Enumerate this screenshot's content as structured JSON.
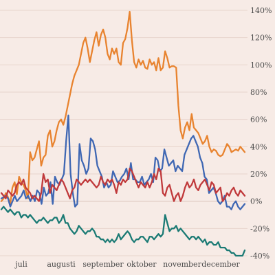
{
  "chart_data": {
    "type": "line",
    "title": "",
    "xlabel": "",
    "ylabel": "",
    "x_tick_labels": [
      "juli",
      "augusti",
      "september",
      "oktober",
      "november",
      "december"
    ],
    "y_ticks": [
      {
        "value": 140,
        "label": "140%"
      },
      {
        "value": 120,
        "label": "120%"
      },
      {
        "value": 100,
        "label": "100%"
      },
      {
        "value": 80,
        "label": "80%"
      },
      {
        "value": 60,
        "label": "60%"
      },
      {
        "value": 40,
        "label": "40%"
      },
      {
        "value": 20,
        "label": "20%"
      },
      {
        "value": 0,
        "label": "0%"
      },
      {
        "value": -20,
        "label": "-20%"
      },
      {
        "value": -40,
        "label": "-40%"
      }
    ],
    "ylim": [
      -40,
      140
    ],
    "grid": true,
    "background_color": "#f7ebe6",
    "series": [
      {
        "color": "#e8832f",
        "values": [
          0,
          2,
          6,
          3,
          -2,
          10,
          14,
          5,
          18,
          14,
          12,
          8,
          2,
          36,
          30,
          32,
          38,
          44,
          26,
          32,
          34,
          48,
          52,
          40,
          44,
          52,
          58,
          60,
          56,
          62,
          70,
          78,
          86,
          92,
          96,
          100,
          108,
          116,
          120,
          112,
          102,
          110,
          118,
          124,
          114,
          122,
          126,
          120,
          108,
          104,
          112,
          108,
          112,
          102,
          100,
          116,
          119,
          127,
          139,
          118,
          102,
          98,
          104,
          100,
          103,
          98,
          97,
          104,
          100,
          102,
          96,
          105,
          96,
          98,
          110,
          105,
          98,
          99,
          99,
          98,
          70,
          52,
          46,
          54,
          58,
          52,
          64,
          54,
          52,
          50,
          46,
          42,
          44,
          48,
          40,
          36,
          38,
          37,
          34,
          33,
          34,
          38,
          42,
          40,
          36,
          37,
          38,
          37,
          40,
          38,
          36
        ]
      },
      {
        "color": "#3f67b3",
        "values": [
          2,
          3,
          4,
          2,
          -4,
          0,
          4,
          0,
          2,
          4,
          8,
          2,
          4,
          0,
          4,
          0,
          8,
          6,
          -2,
          10,
          4,
          6,
          14,
          -2,
          18,
          14,
          12,
          16,
          20,
          44,
          63,
          20,
          6,
          -4,
          -2,
          42,
          30,
          26,
          20,
          24,
          46,
          44,
          38,
          26,
          22,
          18,
          10,
          14,
          10,
          12,
          22,
          18,
          14,
          15,
          18,
          20,
          24,
          16,
          28,
          16,
          16,
          14,
          14,
          18,
          12,
          14,
          16,
          20,
          14,
          32,
          30,
          22,
          24,
          38,
          32,
          26,
          28,
          30,
          22,
          26,
          24,
          22,
          34,
          38,
          42,
          46,
          48,
          44,
          40,
          32,
          28,
          18,
          16,
          6,
          8,
          10,
          6,
          0,
          -2,
          0,
          4,
          -4,
          -4,
          -6,
          -2,
          0,
          -4,
          -6,
          -4,
          -2
        ]
      },
      {
        "color": "#c0393b",
        "values": [
          6,
          4,
          2,
          8,
          6,
          4,
          6,
          12,
          14,
          12,
          16,
          10,
          8,
          6,
          2,
          4,
          2,
          0,
          6,
          20,
          14,
          16,
          6,
          12,
          10,
          8,
          12,
          16,
          14,
          10,
          6,
          2,
          8,
          10,
          16,
          14,
          12,
          14,
          16,
          14,
          16,
          14,
          12,
          10,
          12,
          18,
          14,
          12,
          16,
          14,
          16,
          12,
          6,
          14,
          12,
          16,
          14,
          16,
          24,
          22,
          18,
          14,
          10,
          14,
          12,
          10,
          14,
          10,
          14,
          20,
          16,
          24,
          22,
          6,
          4,
          10,
          12,
          6,
          0,
          4,
          6,
          0,
          4,
          10,
          14,
          10,
          12,
          16,
          10,
          8,
          12,
          14,
          16,
          12,
          8,
          14,
          12,
          6,
          8,
          10,
          0,
          2,
          6,
          4,
          8,
          10,
          6,
          4,
          8,
          6,
          4
        ]
      },
      {
        "color": "#1a7a74",
        "values": [
          -6,
          -4,
          -6,
          -8,
          -6,
          -8,
          -10,
          -8,
          -8,
          -12,
          -10,
          -10,
          -12,
          -10,
          -12,
          -14,
          -16,
          -14,
          -14,
          -12,
          -14,
          -16,
          -14,
          -14,
          -12,
          -12,
          -16,
          -14,
          -10,
          -16,
          -16,
          -20,
          -22,
          -24,
          -22,
          -18,
          -20,
          -22,
          -24,
          -22,
          -22,
          -20,
          -22,
          -26,
          -26,
          -28,
          -28,
          -30,
          -28,
          -30,
          -28,
          -30,
          -28,
          -24,
          -28,
          -26,
          -24,
          -22,
          -24,
          -28,
          -30,
          -28,
          -28,
          -26,
          -26,
          -28,
          -30,
          -26,
          -26,
          -28,
          -26,
          -24,
          -26,
          -24,
          -10,
          -16,
          -22,
          -20,
          -20,
          -18,
          -22,
          -20,
          -22,
          -24,
          -26,
          -28,
          -26,
          -26,
          -28,
          -26,
          -28,
          -30,
          -28,
          -32,
          -30,
          -30,
          -32,
          -32,
          -30,
          -34,
          -34,
          -34,
          -36,
          -36,
          -38,
          -38,
          -40,
          -40,
          -40,
          -40,
          -36
        ]
      }
    ]
  }
}
